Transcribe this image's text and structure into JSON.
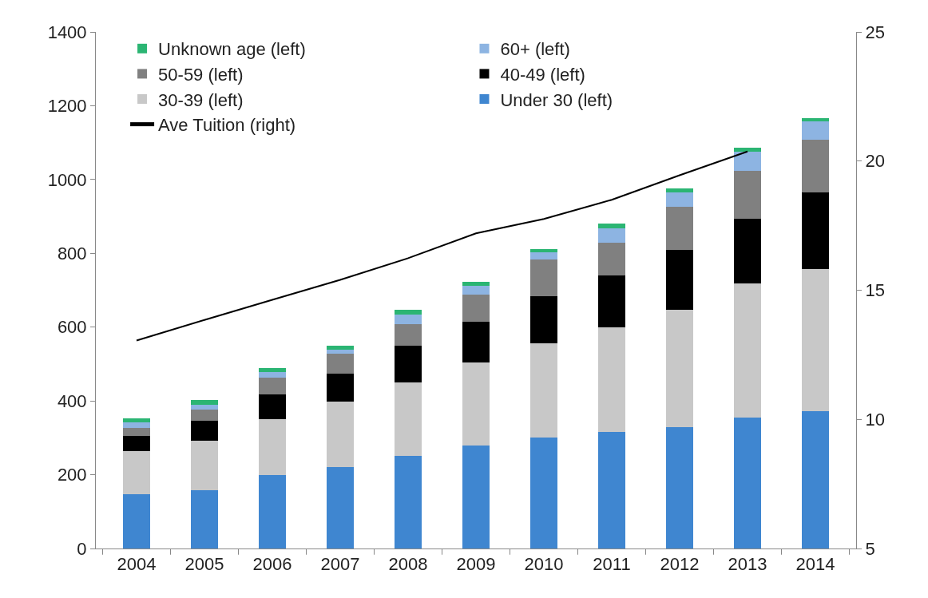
{
  "chart_data": {
    "type": "bar",
    "stacked": true,
    "categories": [
      "2004",
      "2005",
      "2006",
      "2007",
      "2008",
      "2009",
      "2010",
      "2011",
      "2012",
      "2013",
      "2014"
    ],
    "series": [
      {
        "name": "Under 30 (left)",
        "color": "#3f86d0",
        "values": [
          148,
          159,
          200,
          220,
          250,
          279,
          301,
          317,
          328,
          354,
          372
        ]
      },
      {
        "name": "30-39 (left)",
        "color": "#c8c8c8",
        "values": [
          115,
          134,
          150,
          178,
          200,
          226,
          256,
          282,
          320,
          364,
          385
        ]
      },
      {
        "name": "40-49 (left)",
        "color": "#000000",
        "values": [
          42,
          53,
          67,
          76,
          100,
          109,
          126,
          141,
          162,
          176,
          208
        ]
      },
      {
        "name": "50-59 (left)",
        "color": "#808080",
        "values": [
          22,
          30,
          46,
          54,
          59,
          74,
          101,
          88,
          117,
          129,
          142
        ]
      },
      {
        "name": "60+ (left)",
        "color": "#8db4e2",
        "values": [
          15,
          13,
          15,
          11,
          24,
          23,
          18,
          40,
          37,
          53,
          50
        ]
      },
      {
        "name": "Unknown age (left)",
        "color": "#2bb573",
        "values": [
          10,
          13,
          11,
          11,
          13,
          12,
          10,
          13,
          12,
          11,
          9
        ]
      },
      {
        "name": "Ave Tuition (right)",
        "type": "line",
        "axis": "y2",
        "color": "#000000",
        "values": [
          13.05,
          13.85,
          14.63,
          15.4,
          16.24,
          17.2,
          17.76,
          18.5,
          19.45,
          20.37,
          null
        ]
      }
    ],
    "ylim": [
      0,
      1400
    ],
    "yticks": [
      0,
      200,
      400,
      600,
      800,
      1000,
      1200,
      1400
    ],
    "y2lim": [
      5,
      25
    ],
    "y2ticks": [
      5,
      10,
      15,
      20,
      25
    ],
    "legend": "top",
    "marker": "none",
    "line_style": "solid"
  }
}
